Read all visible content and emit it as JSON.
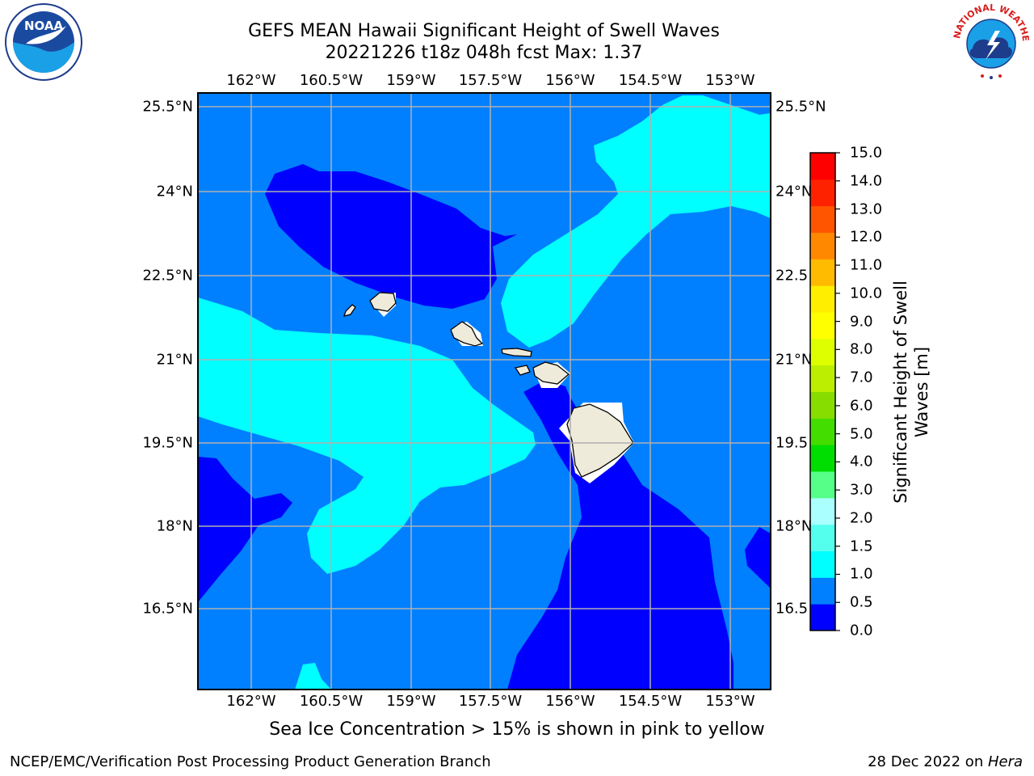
{
  "header": {
    "title_line1": "GEFS MEAN Hawaii Significant Height of Swell Waves",
    "title_line2": "20221226 t18z 048h fcst   Max: 1.37"
  },
  "axes": {
    "lon_ticks": [
      "162°W",
      "160.5°W",
      "159°W",
      "157.5°W",
      "156°W",
      "154.5°W",
      "153°W"
    ],
    "lat_ticks": [
      "25.5°N",
      "24°N",
      "22.5°N",
      "21°N",
      "19.5°N",
      "18°N",
      "16.5°N"
    ],
    "right_lat_ticks": [
      "25.5°N",
      "24°N",
      "22.5",
      "21°N",
      "19.5",
      "18°N",
      "16.5"
    ]
  },
  "colorbar": {
    "label": "Significant Height of Swell Waves [m]",
    "ticks": [
      "0.0",
      "0.5",
      "1.0",
      "1.5",
      "2.0",
      "3.0",
      "4.0",
      "5.0",
      "6.0",
      "7.0",
      "8.0",
      "9.0",
      "10.0",
      "11.0",
      "12.0",
      "13.0",
      "14.0",
      "15.0"
    ],
    "colors": [
      "#0000ff",
      "#0080ff",
      "#00ffff",
      "#55ffee",
      "#aaffff",
      "#55ff88",
      "#00dd00",
      "#44dd00",
      "#88dd00",
      "#bbee00",
      "#ddff00",
      "#ffff00",
      "#ffee00",
      "#ffbb00",
      "#ff8800",
      "#ff5500",
      "#ff2200",
      "#ff0000"
    ]
  },
  "legend_colors": {
    "band_0_0.5": "#0000ff",
    "band_0.5_1.0": "#0080ff",
    "band_1.0_1.5": "#00ffff",
    "land": "#efebdb"
  },
  "logos": {
    "noaa": "NOAA",
    "nws": "NATIONAL WEATHER SERVICE"
  },
  "note": "Sea Ice Concentration > 15% is shown in pink to yellow",
  "footer": {
    "left": "NCEP/EMC/Verification Post Processing Product Generation Branch",
    "date": "28 Dec 2022 on ",
    "machine": "Hera"
  }
}
